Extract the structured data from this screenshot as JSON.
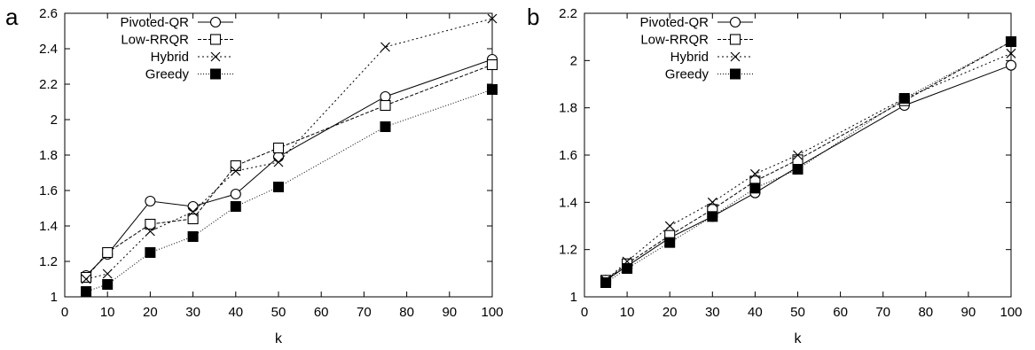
{
  "chart_data": [
    {
      "type": "line",
      "panel_label": "a",
      "xlabel": "k",
      "ylabel": "",
      "xlim": [
        0,
        100
      ],
      "ylim": [
        1,
        2.6
      ],
      "xticks": [
        0,
        10,
        20,
        30,
        40,
        50,
        60,
        70,
        80,
        90,
        100
      ],
      "yticks": [
        1,
        1.2,
        1.4,
        1.6,
        1.8,
        2,
        2.2,
        2.4,
        2.6
      ],
      "ytick_labels": [
        "1",
        "1.2",
        "1.4",
        "1.6",
        "1.8",
        "2",
        "2.2",
        "2.4",
        "2.6"
      ],
      "legend_position": "top-left",
      "grid": false,
      "x": [
        5,
        10,
        20,
        30,
        40,
        50,
        75,
        100
      ],
      "series": [
        {
          "name": "Pivoted-QR",
          "marker": "circle",
          "line": "solid",
          "values": [
            1.12,
            1.24,
            1.54,
            1.51,
            1.58,
            1.79,
            2.13,
            2.34
          ]
        },
        {
          "name": "Low-RRQR",
          "marker": "square",
          "line": "dashed",
          "values": [
            1.11,
            1.25,
            1.41,
            1.44,
            1.74,
            1.84,
            2.08,
            2.31
          ]
        },
        {
          "name": "Hybrid",
          "marker": "cross",
          "line": "dotted",
          "values": [
            1.1,
            1.13,
            1.37,
            1.48,
            1.71,
            1.76,
            2.41,
            2.57
          ]
        },
        {
          "name": "Greedy",
          "marker": "filled-square",
          "line": "dotted-fine",
          "values": [
            1.03,
            1.07,
            1.25,
            1.34,
            1.51,
            1.62,
            1.96,
            2.17
          ]
        }
      ]
    },
    {
      "type": "line",
      "panel_label": "b",
      "xlabel": "k",
      "ylabel": "",
      "xlim": [
        0,
        100
      ],
      "ylim": [
        1,
        2.2
      ],
      "xticks": [
        0,
        10,
        20,
        30,
        40,
        50,
        60,
        70,
        80,
        90,
        100
      ],
      "yticks": [
        1,
        1.2,
        1.4,
        1.6,
        1.8,
        2,
        2.2
      ],
      "ytick_labels": [
        "1",
        "1.2",
        "1.4",
        "1.6",
        "1.8",
        "2",
        "2.2"
      ],
      "legend_position": "top-left",
      "grid": false,
      "x": [
        5,
        10,
        20,
        30,
        40,
        50,
        75,
        100
      ],
      "series": [
        {
          "name": "Pivoted-QR",
          "marker": "circle",
          "line": "solid",
          "values": [
            1.07,
            1.13,
            1.25,
            1.34,
            1.44,
            1.55,
            1.81,
            1.98
          ]
        },
        {
          "name": "Low-RRQR",
          "marker": "square",
          "line": "dashed",
          "values": [
            1.07,
            1.14,
            1.26,
            1.37,
            1.49,
            1.58,
            1.83,
            2.08
          ]
        },
        {
          "name": "Hybrid",
          "marker": "cross",
          "line": "dotted",
          "values": [
            1.07,
            1.15,
            1.3,
            1.4,
            1.52,
            1.6,
            1.84,
            2.03
          ]
        },
        {
          "name": "Greedy",
          "marker": "filled-square",
          "line": "dotted-fine",
          "values": [
            1.06,
            1.12,
            1.23,
            1.34,
            1.46,
            1.54,
            1.84,
            2.08
          ]
        }
      ]
    }
  ]
}
